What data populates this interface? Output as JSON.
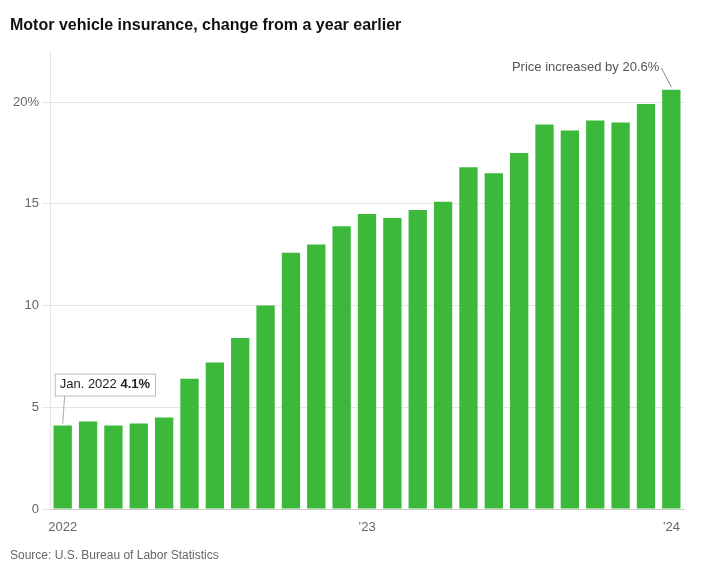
{
  "chart_data": {
    "type": "bar",
    "title": "Motor vehicle insurance, change from a year earlier",
    "source": "Source: U.S. Bureau of Labor Statistics",
    "annotations": [
      "Price increased by 20.6%",
      "Jan. 2022 4.1%"
    ],
    "categories": [
      "2022",
      null,
      null,
      null,
      null,
      null,
      null,
      null,
      null,
      null,
      null,
      null,
      "’23",
      null,
      null,
      null,
      null,
      null,
      null,
      null,
      null,
      null,
      null,
      null,
      "’24"
    ],
    "values": [
      4.1,
      4.3,
      4.1,
      4.2,
      4.5,
      6.4,
      7.2,
      8.4,
      10.0,
      12.6,
      13.0,
      13.9,
      14.5,
      14.3,
      14.7,
      15.1,
      16.8,
      16.5,
      17.5,
      18.9,
      18.6,
      19.1,
      19.0,
      19.9,
      20.6
    ],
    "color": "#3cb83a",
    "ylim": [
      0,
      22.5
    ],
    "yticks": [
      0,
      5,
      10,
      15,
      {
        "value": 20,
        "label": "20%"
      }
    ],
    "grid": true
  }
}
